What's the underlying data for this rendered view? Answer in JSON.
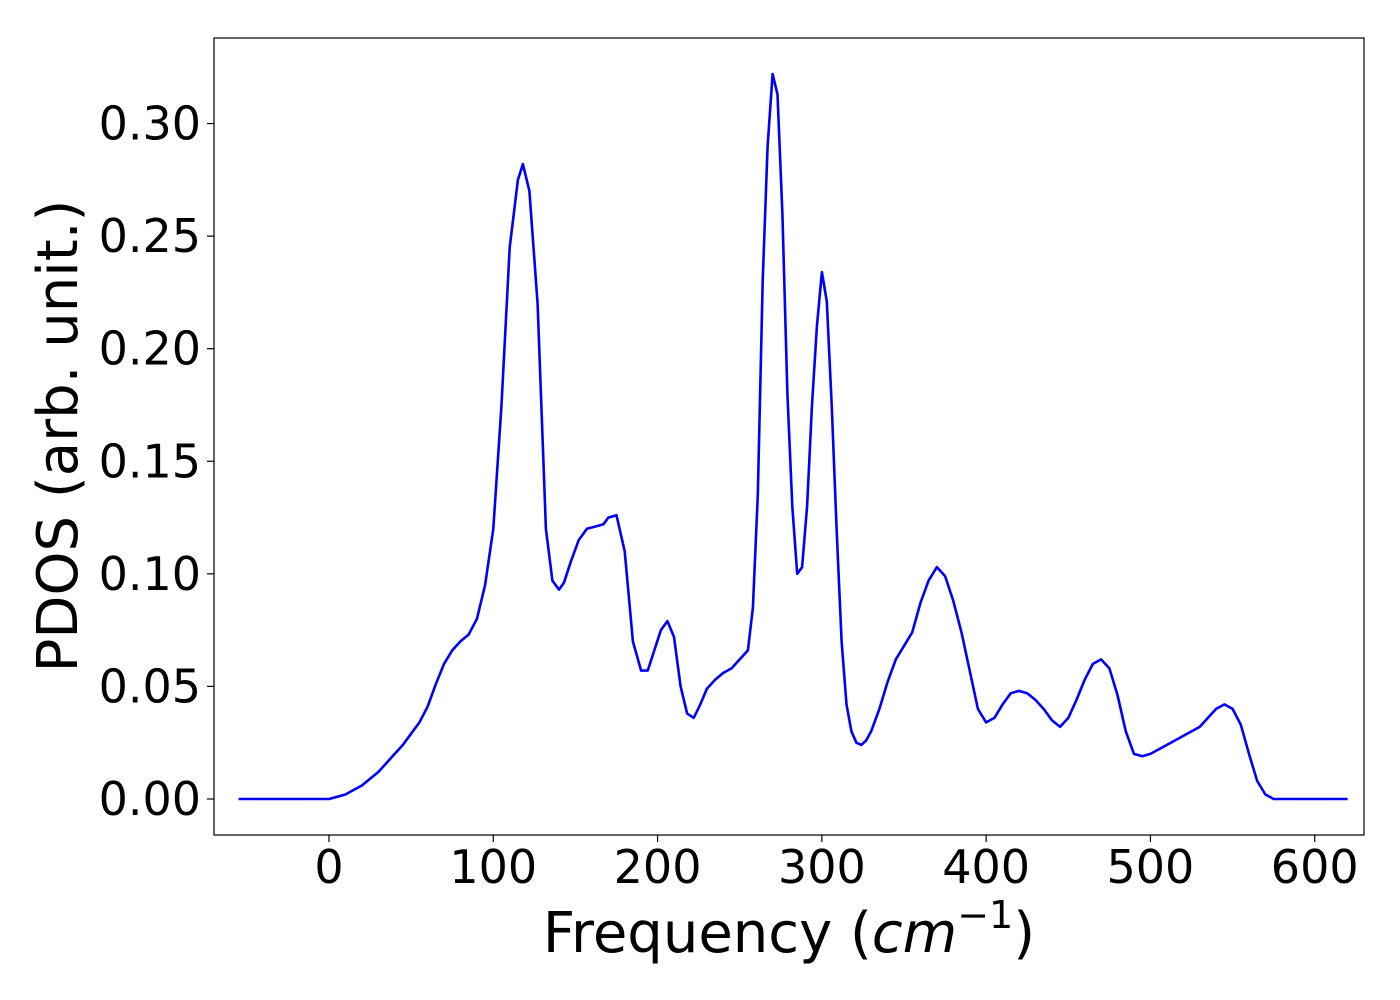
{
  "chart_data": {
    "type": "line",
    "title": "",
    "xlabel": "Frequency (",
    "xlabel_math": "cm",
    "xlabel_sup": "−1",
    "xlabel_end": ")",
    "ylabel": "PDOS (arb. unit.)",
    "xlim": [
      -70,
      630
    ],
    "ylim": [
      -0.016,
      0.338
    ],
    "xticks": [
      0,
      100,
      200,
      300,
      400,
      500,
      600
    ],
    "xtick_labels": [
      "0",
      "100",
      "200",
      "300",
      "400",
      "500",
      "600"
    ],
    "yticks": [
      0.0,
      0.05,
      0.1,
      0.15,
      0.2,
      0.25,
      0.3
    ],
    "ytick_labels": [
      "0.00",
      "0.05",
      "0.10",
      "0.15",
      "0.20",
      "0.25",
      "0.30"
    ],
    "grid": false,
    "legend": "none",
    "series": [
      {
        "color": "#0000ff",
        "x": [
          -55,
          0,
          5,
          10,
          15,
          20,
          25,
          30,
          35,
          40,
          45,
          50,
          55,
          60,
          65,
          70,
          75,
          80,
          85,
          90,
          95,
          100,
          105,
          110,
          115,
          118,
          122,
          127,
          132,
          136,
          140,
          143,
          147,
          152,
          157,
          162,
          167,
          170,
          175,
          180,
          185,
          190,
          194,
          198,
          202,
          206,
          210,
          214,
          218,
          222,
          226,
          230,
          235,
          240,
          245,
          250,
          255,
          258,
          261,
          264,
          267,
          270,
          273,
          276,
          279,
          282,
          285,
          288,
          291,
          294,
          297,
          300,
          303,
          306,
          309,
          312,
          315,
          318,
          321,
          324,
          327,
          330,
          335,
          340,
          345,
          350,
          355,
          360,
          365,
          370,
          375,
          380,
          385,
          390,
          395,
          400,
          405,
          410,
          415,
          420,
          425,
          430,
          435,
          440,
          445,
          450,
          455,
          460,
          465,
          470,
          475,
          480,
          485,
          490,
          495,
          500,
          510,
          520,
          530,
          535,
          540,
          545,
          550,
          555,
          560,
          565,
          570,
          575,
          580,
          620
        ],
        "y": [
          0.0,
          0.0,
          0.001,
          0.002,
          0.004,
          0.006,
          0.009,
          0.012,
          0.016,
          0.02,
          0.024,
          0.029,
          0.034,
          0.041,
          0.051,
          0.06,
          0.066,
          0.07,
          0.073,
          0.08,
          0.095,
          0.12,
          0.175,
          0.245,
          0.275,
          0.282,
          0.27,
          0.22,
          0.12,
          0.097,
          0.093,
          0.096,
          0.105,
          0.115,
          0.12,
          0.121,
          0.122,
          0.125,
          0.126,
          0.11,
          0.07,
          0.057,
          0.057,
          0.066,
          0.075,
          0.079,
          0.072,
          0.05,
          0.038,
          0.036,
          0.042,
          0.049,
          0.053,
          0.056,
          0.058,
          0.062,
          0.066,
          0.085,
          0.135,
          0.23,
          0.29,
          0.322,
          0.313,
          0.26,
          0.18,
          0.13,
          0.1,
          0.103,
          0.13,
          0.175,
          0.21,
          0.234,
          0.221,
          0.175,
          0.12,
          0.07,
          0.042,
          0.03,
          0.025,
          0.024,
          0.026,
          0.03,
          0.04,
          0.052,
          0.062,
          0.068,
          0.074,
          0.087,
          0.097,
          0.103,
          0.099,
          0.088,
          0.074,
          0.057,
          0.04,
          0.034,
          0.036,
          0.042,
          0.047,
          0.048,
          0.047,
          0.044,
          0.04,
          0.035,
          0.032,
          0.036,
          0.044,
          0.053,
          0.06,
          0.062,
          0.058,
          0.046,
          0.03,
          0.02,
          0.019,
          0.02,
          0.024,
          0.028,
          0.032,
          0.036,
          0.04,
          0.042,
          0.04,
          0.033,
          0.02,
          0.008,
          0.002,
          0.0,
          0.0,
          0.0
        ]
      }
    ]
  }
}
